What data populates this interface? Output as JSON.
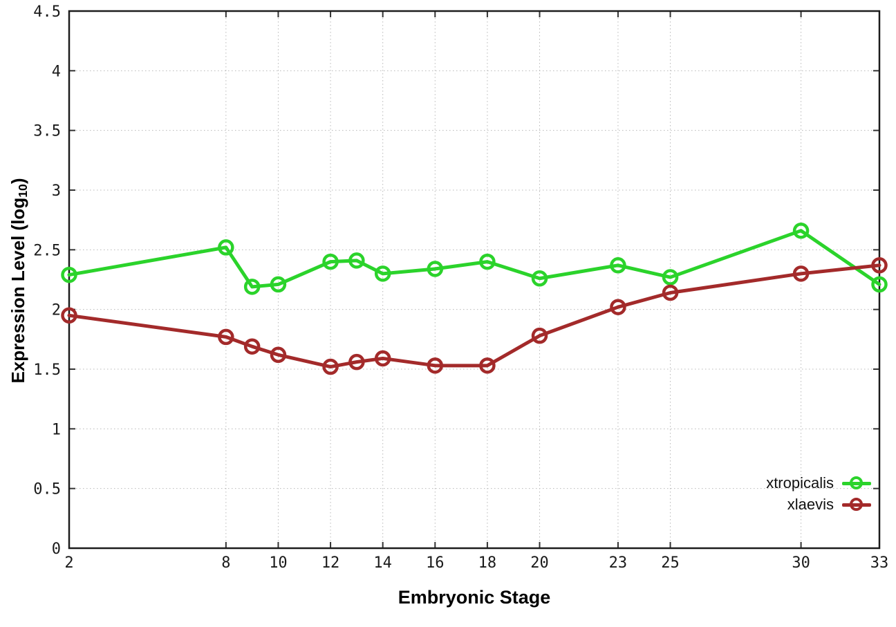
{
  "chart_data": {
    "type": "line",
    "title": "",
    "xlabel": "Embryonic Stage",
    "ylabel": "Expression Level (log10)",
    "ylabel_parts": {
      "base": "Expression Level (log",
      "sub": "10",
      "close": ")"
    },
    "x": [
      2,
      8,
      9,
      10,
      12,
      13,
      14,
      16,
      18,
      20,
      23,
      25,
      30,
      33
    ],
    "series": [
      {
        "name": "xtropicalis",
        "color": "#2bd32b",
        "values": [
          2.29,
          2.52,
          2.19,
          2.21,
          2.4,
          2.41,
          2.3,
          2.34,
          2.4,
          2.26,
          2.37,
          2.27,
          2.66,
          2.21
        ]
      },
      {
        "name": "xlaevis",
        "color": "#a32a2a",
        "values": [
          1.95,
          1.77,
          1.69,
          1.62,
          1.52,
          1.56,
          1.59,
          1.53,
          1.53,
          1.78,
          2.02,
          2.14,
          2.3,
          2.37
        ]
      }
    ],
    "xlim": [
      2,
      33
    ],
    "ylim": [
      0,
      4.5
    ],
    "xtick_labels": [
      "2",
      "8",
      "10",
      "12",
      "14",
      "16",
      "18",
      "20",
      "23",
      "25",
      "30",
      "33"
    ],
    "ytick_labels": [
      "0",
      "0.5",
      "1",
      "1.5",
      "2",
      "2.5",
      "3",
      "3.5",
      "4",
      "4.5"
    ],
    "grid": true,
    "legend_position": "bottom-right"
  },
  "colors": {
    "background": "#ffffff",
    "axis_border": "#1c1c1c",
    "tick": "#333333",
    "tick_text": "#1a1a1a",
    "grid": "#b8b8b8",
    "label_text": "#000000"
  }
}
